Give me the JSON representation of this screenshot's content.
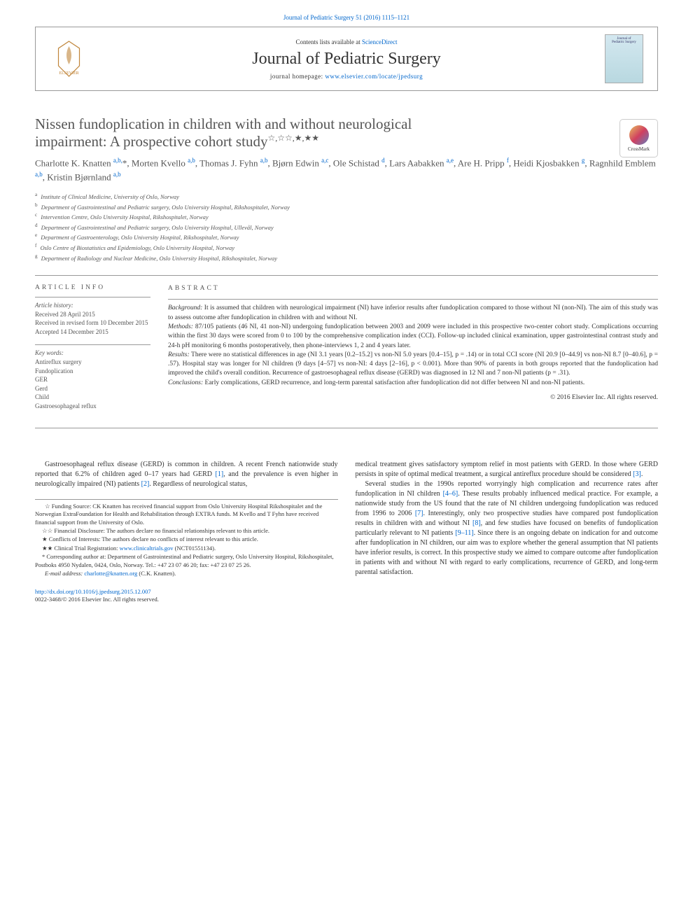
{
  "top_citation": "Journal of Pediatric Surgery 51 (2016) 1115–1121",
  "header": {
    "contents_prefix": "Contents lists available at ",
    "contents_link": "ScienceDirect",
    "journal_name": "Journal of Pediatric Surgery",
    "homepage_prefix": "journal homepage: ",
    "homepage_url": "www.elsevier.com/locate/jpedsurg",
    "cover_text_top": "Journal of",
    "cover_text_bottom": "Pediatric Surgery"
  },
  "title_line1": "Nissen fundoplication in children with and without neurological",
  "title_line2": "impairment: A prospective cohort study",
  "title_marks": "☆,☆☆,★,★★",
  "crossmark_label": "CrossMark",
  "authors_html": "Charlotte K. Knatten <sup>a,b,</sup>*, Morten Kvello <sup>a,b</sup>, Thomas J. Fyhn <sup>a,b</sup>, Bjørn Edwin <sup>a,c</sup>, Ole Schistad <sup>d</sup>, Lars Aabakken <sup>a,e</sup>, Are H. Pripp <sup>f</sup>, Heidi Kjosbakken <sup>g</sup>, Ragnhild Emblem <sup>a,b</sup>, Kristin Bjørnland <sup>a,b</sup>",
  "affiliations": [
    {
      "sup": "a",
      "text": "Institute of Clinical Medicine, University of Oslo, Norway"
    },
    {
      "sup": "b",
      "text": "Department of Gastrointestinal and Pediatric surgery, Oslo University Hospital, Rikshospitalet, Norway"
    },
    {
      "sup": "c",
      "text": "Intervention Centre, Oslo University Hospital, Rikshospitalet, Norway"
    },
    {
      "sup": "d",
      "text": "Department of Gastrointestinal and Pediatric surgery, Oslo University Hospital, Ullevål, Norway"
    },
    {
      "sup": "e",
      "text": "Department of Gastroenterology, Oslo University Hospital, Rikshospitalet, Norway"
    },
    {
      "sup": "f",
      "text": "Oslo Centre of Biostatistics and Epidemiology, Oslo University Hospital, Norway"
    },
    {
      "sup": "g",
      "text": "Department of Radiology and Nuclear Medicine, Oslo University Hospital, Rikshospitalet, Norway"
    }
  ],
  "article_info": {
    "heading": "article info",
    "history_label": "Article history:",
    "history": [
      "Received 28 April 2015",
      "Received in revised form 10 December 2015",
      "Accepted 14 December 2015"
    ],
    "keywords_label": "Key words:",
    "keywords": [
      "Antireflux surgery",
      "Fundoplication",
      "GER",
      "Gerd",
      "Child",
      "Gastroesophageal reflux"
    ]
  },
  "abstract": {
    "heading": "abstract",
    "background_label": "Background:",
    "background": "It is assumed that children with neurological impairment (NI) have inferior results after fundoplication compared to those without NI (non-NI). The aim of this study was to assess outcome after fundoplication in children with and without NI.",
    "methods_label": "Methods:",
    "methods": "87/105 patients (46 NI, 41 non-NI) undergoing fundoplication between 2003 and 2009 were included in this prospective two-center cohort study. Complications occurring within the first 30 days were scored from 0 to 100 by the comprehensive complication index (CCI). Follow-up included clinical examination, upper gastrointestinal contrast study and 24-h pH monitoring 6 months postoperatively, then phone-interviews 1, 2 and 4 years later.",
    "results_label": "Results:",
    "results": "There were no statistical differences in age (NI 3.1 years [0.2–15.2] vs non-NI 5.0 years [0.4–15], p = .14) or in total CCI score (NI 20.9 [0–44.9] vs non-NI 8.7 [0–40.6], p = .57). Hospital stay was longer for NI children (9 days [4–57] vs non-NI: 4 days [2–16], p < 0.001). More than 90% of parents in both groups reported that the fundoplication had improved the child's overall condition. Recurrence of gastroesophageal reflux disease (GERD) was diagnosed in 12 NI and 7 non-NI patients (p = .31).",
    "conclusions_label": "Conclusions:",
    "conclusions": "Early complications, GERD recurrence, and long-term parental satisfaction after fundoplication did not differ between NI and non-NI patients.",
    "copyright": "© 2016 Elsevier Inc. All rights reserved."
  },
  "body": {
    "left": {
      "p1_a": "Gastroesophageal reflux disease (GERD) is common in children. A recent French nationwide study reported that 6.2% of children aged 0–17 years had GERD ",
      "r1": "[1]",
      "p1_b": ", and the prevalence is even higher in neurologically impaired (NI) patients ",
      "r2": "[2]",
      "p1_c": ". Regardless of neurological status,"
    },
    "right": {
      "p1_a": "medical treatment gives satisfactory symptom relief in most patients with GERD. In those where GERD persists in spite of optimal medical treatment, a surgical antireflux procedure should be considered ",
      "r3": "[3]",
      "p1_b": ".",
      "p2_a": "Several studies in the 1990s reported worryingly high complication and recurrence rates after fundoplication in NI children ",
      "r46": "[4–6]",
      "p2_b": ". These results probably influenced medical practice. For example, a nationwide study from the US found that the rate of NI children undergoing fundoplication was reduced from 1996 to 2006 ",
      "r7": "[7]",
      "p2_c": ". Interestingly, only two prospective studies have compared post fundoplication results in children with and without NI ",
      "r8": "[8]",
      "p2_d": ", and few studies have focused on benefits of fundoplication particularly relevant to NI patients ",
      "r911": "[9–11]",
      "p2_e": ". Since there is an ongoing debate on indication for and outcome after fundoplication in NI children, our aim was to explore whether the general assumption that NI patients have inferior results, is correct. In this prospective study we aimed to compare outcome after fundoplication in patients with and without NI with regard to early complications, recurrence of GERD, and long-term parental satisfaction."
    }
  },
  "footnotes": {
    "f1_mark": "☆",
    "f1": "Funding Source: CK Knatten has received financial support from Oslo University Hospital Rikshospitalet and the Norwegian ExtraFoundation for Health and Rehabilitation through EXTRA funds. M Kvello and T Fyhn have received financial support from the University of Oslo.",
    "f2_mark": "☆☆",
    "f2": "Financial Disclosure: The authors declare no financial relationships relevant to this article.",
    "f3_mark": "★",
    "f3": "Conflicts of Interests: The authors declare no conflicts of interest relevant to this article.",
    "f4_mark": "★★",
    "f4_a": "Clinical Trial Registration: ",
    "f4_link": "www.clinicaltrials.gov",
    "f4_b": " (NCT01551134).",
    "corr_mark": "*",
    "corr": "Corresponding author at: Department of Gastrointestinal and Pediatric surgery, Oslo University Hospital, Rikshospitalet, Postboks 4950 Nydalen, 0424, Oslo, Norway. Tel.: +47 23 07 46 20; fax: +47 23 07 25 26.",
    "email_label": "E-mail address: ",
    "email": "charlotte@knatten.org",
    "email_suffix": " (C.K. Knatten)."
  },
  "bottom": {
    "doi": "http://dx.doi.org/10.1016/j.jpedsurg.2015.12.007",
    "issn": "0022-3468/© 2016 Elsevier Inc. All rights reserved."
  },
  "colors": {
    "link": "#0066cc",
    "text": "#333333",
    "heading_gray": "#555555",
    "rule": "#999999"
  }
}
